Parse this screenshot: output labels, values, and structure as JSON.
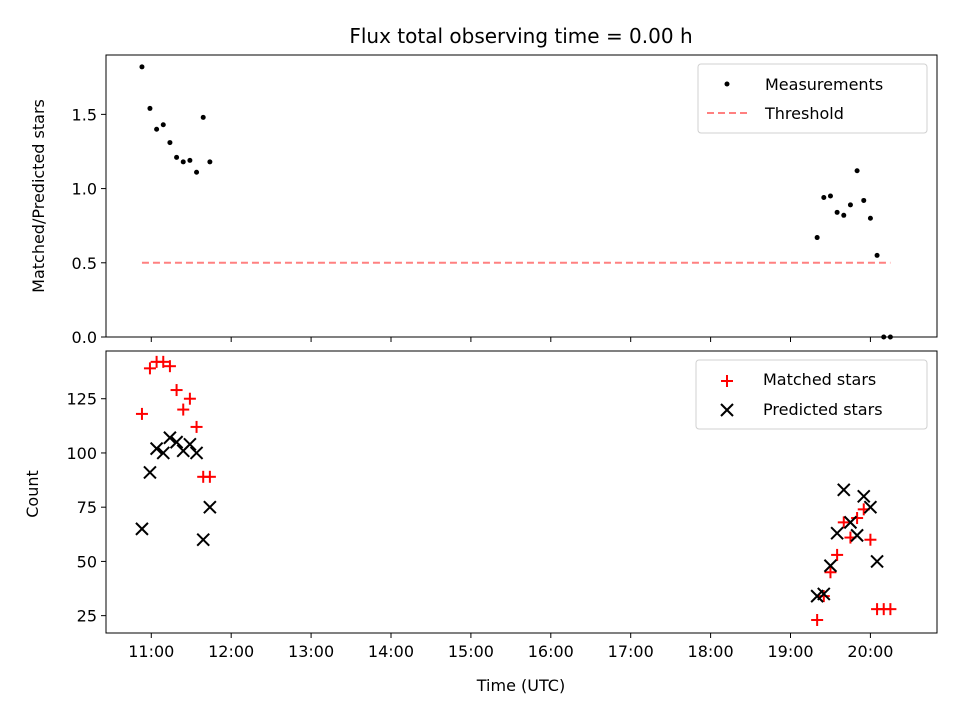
{
  "chart_data": [
    {
      "type": "scatter",
      "title": "Flux total observing time = 0.00 h",
      "ylabel": "Matched/Predicted stars",
      "xlabel": "",
      "xlim": [
        "10:26",
        "20:50"
      ],
      "ylim": [
        0,
        1.9
      ],
      "yticks": [
        "0.0",
        "0.5",
        "1.0",
        "1.5"
      ],
      "ytick_values": [
        0,
        0.5,
        1.0,
        1.5
      ],
      "legend": {
        "placement": "top-right",
        "entries": [
          "Measurements",
          "Threshold"
        ]
      },
      "series": [
        {
          "name": "Measurements",
          "marker": "point",
          "color": "#000000",
          "points": [
            [
              "10:53",
              1.82
            ],
            [
              "10:59",
              1.54
            ],
            [
              "11:04",
              1.4
            ],
            [
              "11:09",
              1.43
            ],
            [
              "11:14",
              1.31
            ],
            [
              "11:19",
              1.21
            ],
            [
              "11:24",
              1.18
            ],
            [
              "11:29",
              1.19
            ],
            [
              "11:34",
              1.11
            ],
            [
              "11:39",
              1.48
            ],
            [
              "11:44",
              1.18
            ],
            [
              "19:20",
              0.67
            ],
            [
              "19:25",
              0.94
            ],
            [
              "19:30",
              0.95
            ],
            [
              "19:35",
              0.84
            ],
            [
              "19:40",
              0.82
            ],
            [
              "19:45",
              0.89
            ],
            [
              "19:50",
              1.12
            ],
            [
              "19:55",
              0.92
            ],
            [
              "20:00",
              0.8
            ],
            [
              "20:05",
              0.55
            ],
            [
              "20:10",
              0.0
            ],
            [
              "20:15",
              0.0
            ]
          ]
        },
        {
          "name": "Threshold",
          "marker": "dashed-line",
          "color": "#ff8080",
          "points": [
            [
              "10:53",
              0.5
            ],
            [
              "20:15",
              0.5
            ]
          ]
        }
      ]
    },
    {
      "type": "scatter",
      "title": "",
      "ylabel": "Count",
      "xlabel": "Time (UTC)",
      "xlim": [
        "10:26",
        "20:50"
      ],
      "ylim": [
        17,
        147
      ],
      "xticks": [
        "11:00",
        "12:00",
        "13:00",
        "14:00",
        "15:00",
        "16:00",
        "17:00",
        "18:00",
        "19:00",
        "20:00"
      ],
      "yticks": [
        "25",
        "50",
        "75",
        "100",
        "125"
      ],
      "ytick_values": [
        25,
        50,
        75,
        100,
        125
      ],
      "legend": {
        "placement": "top-right",
        "entries": [
          "Matched stars",
          "Predicted stars"
        ]
      },
      "series": [
        {
          "name": "Matched stars",
          "marker": "plus",
          "color": "#ff0000",
          "points": [
            [
              "10:53",
              118
            ],
            [
              "10:59",
              139
            ],
            [
              "11:04",
              142
            ],
            [
              "11:09",
              142
            ],
            [
              "11:14",
              140
            ],
            [
              "11:19",
              129
            ],
            [
              "11:24",
              120
            ],
            [
              "11:29",
              125
            ],
            [
              "11:34",
              112
            ],
            [
              "11:39",
              89
            ],
            [
              "11:44",
              89
            ],
            [
              "19:20",
              23
            ],
            [
              "19:25",
              34
            ],
            [
              "19:30",
              45
            ],
            [
              "19:35",
              53
            ],
            [
              "19:40",
              68
            ],
            [
              "19:45",
              61
            ],
            [
              "19:50",
              70
            ],
            [
              "19:55",
              74
            ],
            [
              "20:00",
              60
            ],
            [
              "20:05",
              28
            ],
            [
              "20:10",
              28
            ],
            [
              "20:15",
              28
            ]
          ]
        },
        {
          "name": "Predicted stars",
          "marker": "x",
          "color": "#000000",
          "points": [
            [
              "10:53",
              65
            ],
            [
              "10:59",
              91
            ],
            [
              "11:04",
              102
            ],
            [
              "11:09",
              100
            ],
            [
              "11:14",
              107
            ],
            [
              "11:19",
              105
            ],
            [
              "11:24",
              101
            ],
            [
              "11:29",
              104
            ],
            [
              "11:34",
              100
            ],
            [
              "11:39",
              60
            ],
            [
              "11:44",
              75
            ],
            [
              "19:20",
              34
            ],
            [
              "19:25",
              35
            ],
            [
              "19:30",
              48
            ],
            [
              "19:35",
              63
            ],
            [
              "19:40",
              83
            ],
            [
              "19:45",
              68
            ],
            [
              "19:50",
              62
            ],
            [
              "19:55",
              80
            ],
            [
              "20:00",
              75
            ],
            [
              "20:05",
              50
            ]
          ]
        }
      ]
    }
  ]
}
